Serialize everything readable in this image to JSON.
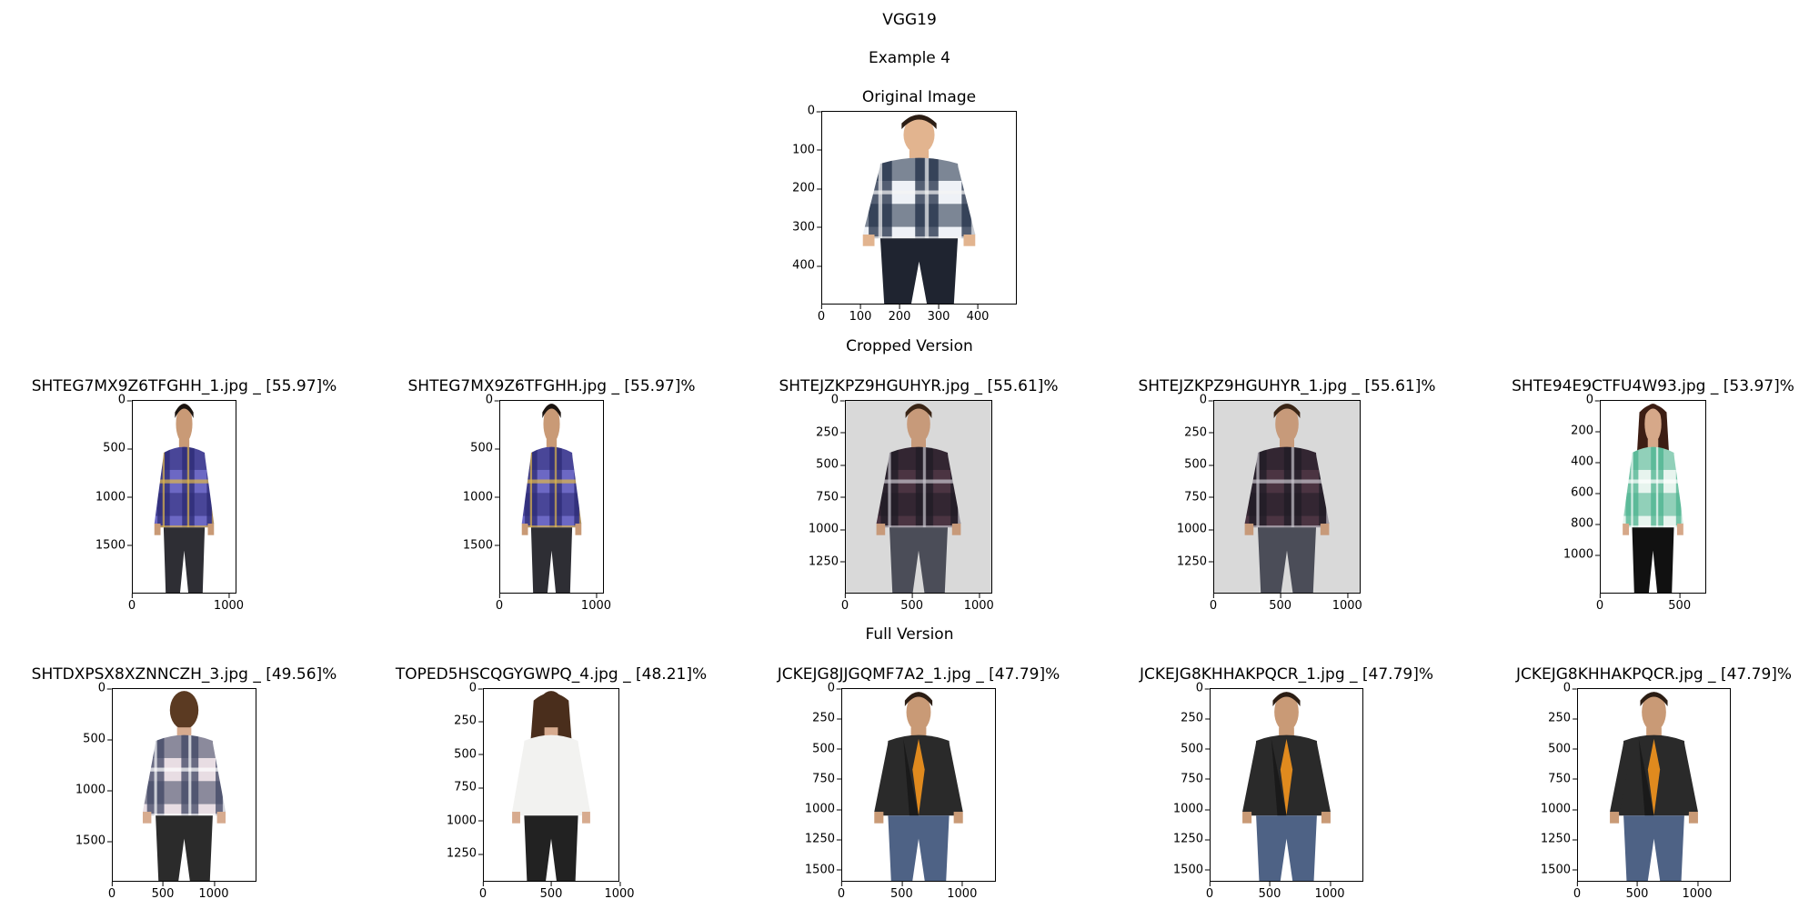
{
  "figure": {
    "title": "VGG19",
    "example": "Example 4",
    "cropped_heading": "Cropped Version",
    "full_heading": "Full Version"
  },
  "original": {
    "title": "Original Image",
    "yticks": [
      "0",
      "100",
      "200",
      "300",
      "400"
    ],
    "xticks": [
      "0",
      "100",
      "200",
      "300",
      "400"
    ],
    "content": "man-checkered-shirt"
  },
  "cropped": [
    {
      "title": "SHTEG7MX9Z6TFGHH_1.jpg _ [55.97]%",
      "yticks": [
        "0",
        "500",
        "1000",
        "1500"
      ],
      "xticks": [
        "0",
        "1000"
      ],
      "content": "man-plaid-shirt-blue"
    },
    {
      "title": "SHTEG7MX9Z6TFGHH.jpg _ [55.97]%",
      "yticks": [
        "0",
        "500",
        "1000",
        "1500"
      ],
      "xticks": [
        "0",
        "1000"
      ],
      "content": "man-plaid-shirt-blue"
    },
    {
      "title": "SHTEJZKPZ9HGUHYR.jpg _ [55.61]%",
      "yticks": [
        "0",
        "250",
        "500",
        "750",
        "1000",
        "1250"
      ],
      "xticks": [
        "0",
        "500",
        "1000"
      ],
      "content": "man-plaid-shirt-maroon"
    },
    {
      "title": "SHTEJZKPZ9HGUHYR_1.jpg _ [55.61]%",
      "yticks": [
        "0",
        "250",
        "500",
        "750",
        "1000",
        "1250"
      ],
      "xticks": [
        "0",
        "500",
        "1000"
      ],
      "content": "man-plaid-shirt-maroon"
    },
    {
      "title": "SHTE94E9CTFU4W93.jpg _ [53.97]%",
      "yticks": [
        "0",
        "200",
        "400",
        "600",
        "800",
        "1000"
      ],
      "xticks": [
        "0",
        "500"
      ],
      "content": "woman-green-check-shirt"
    }
  ],
  "full": [
    {
      "title": "SHTDXPSX8XZNNCZH_3.jpg _ [49.56]%",
      "yticks": [
        "0",
        "500",
        "1000",
        "1500"
      ],
      "xticks": [
        "0",
        "500",
        "1000"
      ],
      "content": "woman-check-shirt-back"
    },
    {
      "title": "TOPED5HSCQGYGWPQ_4.jpg _ [48.21]%",
      "yticks": [
        "0",
        "250",
        "500",
        "750",
        "1000",
        "1250"
      ],
      "xticks": [
        "0",
        "500",
        "1000"
      ],
      "content": "woman-white-shirt-back"
    },
    {
      "title": "JCKEJG8JJGQMF7A2_1.jpg _ [47.79]%",
      "yticks": [
        "0",
        "250",
        "500",
        "750",
        "1000",
        "1250",
        "1500"
      ],
      "xticks": [
        "0",
        "500",
        "1000"
      ],
      "content": "man-leather-jacket"
    },
    {
      "title": "JCKEJG8KHHAKPQCR_1.jpg _ [47.79]%",
      "yticks": [
        "0",
        "250",
        "500",
        "750",
        "1000",
        "1250",
        "1500"
      ],
      "xticks": [
        "0",
        "500",
        "1000"
      ],
      "content": "man-leather-jacket"
    },
    {
      "title": "JCKEJG8KHHAKPQCR.jpg _ [47.79]%",
      "yticks": [
        "0",
        "250",
        "500",
        "750",
        "1000",
        "1250",
        "1500"
      ],
      "xticks": [
        "0",
        "500",
        "1000"
      ],
      "content": "man-leather-jacket"
    }
  ]
}
